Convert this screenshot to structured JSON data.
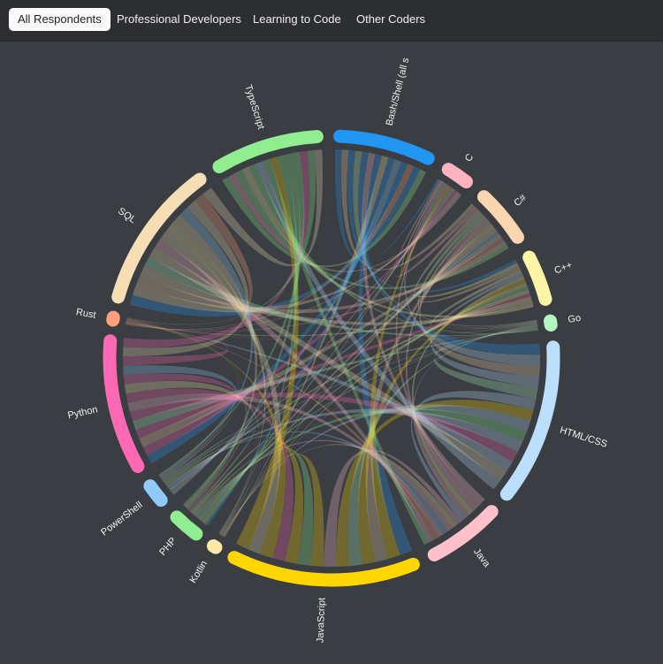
{
  "tabs": [
    "All Respondents",
    "Professional Developers",
    "Learning to Code",
    "Other Coders"
  ],
  "chart_data": {
    "type": "chord",
    "categories": [
      "Bash/Shell (all s",
      "C",
      "C#",
      "C++",
      "Go",
      "HTML/CSS",
      "Java",
      "JavaScript",
      "Kotlin",
      "PHP",
      "PowerShell",
      "Python",
      "Rust",
      "SQL",
      "TypeScript"
    ],
    "values": [
      26,
      8,
      16,
      14,
      3,
      43,
      21,
      50,
      2,
      9,
      7,
      36,
      2,
      40,
      29
    ],
    "colors": [
      "#2196f3",
      "#ffb3c1",
      "#f9d5b0",
      "#fdf5a6",
      "#b5f5c0",
      "#bbdefb",
      "#ffc0cb",
      "#ffd600",
      "#fce9a8",
      "#90ee90",
      "#90caf9",
      "#ff69b4",
      "#ffa07a",
      "#f5deb3",
      "#90ee90"
    ]
  }
}
